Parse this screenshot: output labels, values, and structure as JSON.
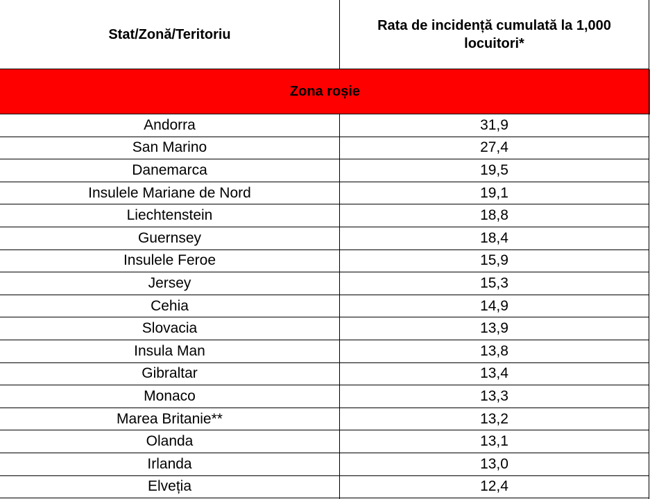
{
  "table": {
    "header": [
      "Stat/Zonă/Teritoriu",
      "Rata de incidență cumulată la 1,000 locuitori*"
    ],
    "section": "Zona roșie",
    "rows": [
      [
        "Andorra",
        "31,9"
      ],
      [
        "San Marino",
        "27,4"
      ],
      [
        "Danemarca",
        "19,5"
      ],
      [
        "Insulele Mariane de Nord",
        "19,1"
      ],
      [
        "Liechtenstein",
        "18,8"
      ],
      [
        "Guernsey",
        "18,4"
      ],
      [
        "Insulele Feroe",
        "15,9"
      ],
      [
        "Jersey",
        "15,3"
      ],
      [
        "Cehia",
        "14,9"
      ],
      [
        "Slovacia",
        "13,9"
      ],
      [
        "Insula Man",
        "13,8"
      ],
      [
        "Gibraltar",
        "13,4"
      ],
      [
        "Monaco",
        "13,3"
      ],
      [
        "Marea Britanie**",
        "13,2"
      ],
      [
        "Olanda",
        "13,1"
      ],
      [
        "Irlanda",
        "13,0"
      ],
      [
        "Elveția",
        "12,4"
      ]
    ]
  }
}
